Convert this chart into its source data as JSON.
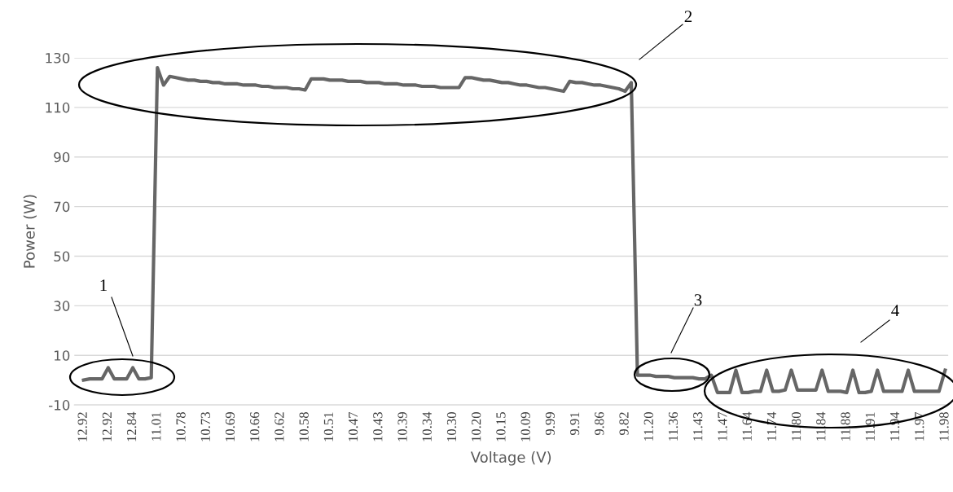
{
  "chart_data": {
    "type": "line",
    "xlabel": "Voltage (V)",
    "ylabel": "Power (W)",
    "categories": [
      "12.92",
      null,
      null,
      null,
      "12.92",
      null,
      null,
      null,
      "12.84",
      null,
      null,
      null,
      "11.01",
      null,
      null,
      null,
      "10.78",
      null,
      null,
      null,
      "10.73",
      null,
      null,
      null,
      "10.69",
      null,
      null,
      null,
      "10.66",
      null,
      null,
      null,
      "10.62",
      null,
      null,
      null,
      "10.58",
      null,
      null,
      null,
      "10.51",
      null,
      null,
      null,
      "10.47",
      null,
      null,
      null,
      "10.43",
      null,
      null,
      null,
      "10.39",
      null,
      null,
      null,
      "10.34",
      null,
      null,
      null,
      "10.30",
      null,
      null,
      null,
      "10.20",
      null,
      null,
      null,
      "10.15",
      null,
      null,
      null,
      "10.09",
      null,
      null,
      null,
      "9.99",
      null,
      null,
      null,
      "9.91",
      null,
      null,
      null,
      "9.86",
      null,
      null,
      null,
      "9.82",
      null,
      null,
      null,
      "11.20",
      null,
      null,
      null,
      "11.36",
      null,
      null,
      null,
      "11.43",
      null,
      null,
      null,
      "11.47",
      null,
      null,
      null,
      "11.64",
      null,
      null,
      null,
      "11.74",
      null,
      null,
      null,
      "11.80",
      null,
      null,
      null,
      "11.84",
      null,
      null,
      null,
      "11.88",
      null,
      null,
      null,
      "11.91",
      null,
      null,
      null,
      "11.94",
      null,
      null,
      null,
      "11.97",
      null,
      null,
      null,
      "11.98"
    ],
    "series": [
      {
        "color": "#666666",
        "values": [
          0,
          0.5,
          0.5,
          0.5,
          5,
          0.5,
          0.5,
          0.5,
          5,
          0.5,
          0.5,
          1,
          126,
          119,
          122.5,
          122,
          121.5,
          121,
          121,
          120.5,
          120.5,
          120,
          120,
          119.5,
          119.5,
          119.5,
          119,
          119,
          119,
          118.5,
          118.5,
          118,
          118,
          118,
          117.5,
          117.5,
          117,
          121.5,
          121.5,
          121.5,
          121,
          121,
          121,
          120.5,
          120.5,
          120.5,
          120,
          120,
          120,
          119.5,
          119.5,
          119.5,
          119,
          119,
          119,
          118.5,
          118.5,
          118.5,
          118,
          118,
          118,
          118,
          122,
          122,
          121.5,
          121,
          121,
          120.5,
          120,
          120,
          119.5,
          119,
          119,
          118.5,
          118,
          118,
          117.5,
          117,
          116.5,
          120.5,
          120,
          120,
          119.5,
          119,
          119,
          118.5,
          118,
          117.5,
          116.5,
          120,
          2,
          2,
          2,
          1.5,
          1.5,
          1.5,
          1,
          1,
          1,
          1,
          0.5,
          0.5,
          2,
          -5,
          -5,
          -5,
          4,
          -5,
          -5,
          -4.5,
          -4.5,
          4,
          -4.5,
          -4.5,
          -4,
          4,
          -4,
          -4,
          -4,
          -4,
          4,
          -4.5,
          -4.5,
          -4.5,
          -5,
          4,
          -5,
          -5,
          -4.5,
          4,
          -4.5,
          -4.5,
          -4.5,
          -4.5,
          4,
          -4.5,
          -4.5,
          -4.5,
          -4.5,
          -4.5,
          4
        ]
      }
    ],
    "ylim": [
      -10,
      130
    ],
    "yticks": [
      -10,
      10,
      30,
      50,
      70,
      90,
      110,
      130
    ],
    "grid": "y",
    "legend": false,
    "marker": "none",
    "line_style": "solid",
    "annotations": [
      "1",
      "2",
      "3",
      "4"
    ]
  }
}
